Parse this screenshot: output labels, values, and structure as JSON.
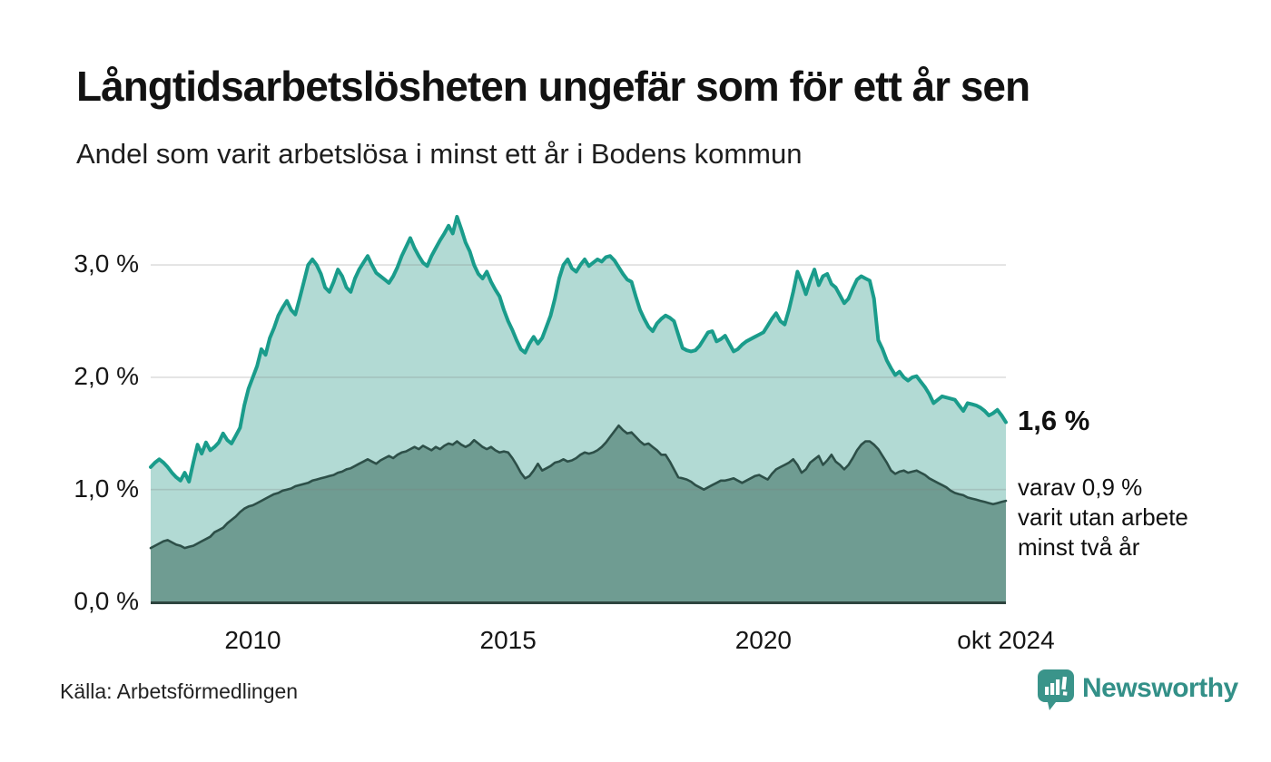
{
  "header": {
    "title": "Långtidsarbetslösheten ungefär som för ett år sen",
    "subtitle": "Andel som varit arbetslösa i minst ett år i Bodens kommun"
  },
  "chart_data": {
    "type": "area",
    "mode": "overlay",
    "title": "Långtidsarbetslösheten ungefär som för ett år sen",
    "subtitle": "Andel som varit arbetslösa i minst ett år i Bodens kommun",
    "frequency": "monthly",
    "x_domain": [
      2008.0,
      2024.75
    ],
    "ylim": [
      0,
      3.5
    ],
    "grid": true,
    "y_ticks": [
      {
        "value": 0,
        "label": "0,0 %"
      },
      {
        "value": 1,
        "label": "1,0 %"
      },
      {
        "value": 2,
        "label": "2,0 %"
      },
      {
        "value": 3,
        "label": "3,0 %"
      }
    ],
    "x_ticks": [
      {
        "value": 2010.0,
        "label": "2010"
      },
      {
        "value": 2015.0,
        "label": "2015"
      },
      {
        "value": 2020.0,
        "label": "2020"
      },
      {
        "value": 2024.75,
        "label": "okt 2024"
      }
    ],
    "series": [
      {
        "name": "Andel som varit arbetslösa i minst ett år",
        "line_color": "#1a9c8b",
        "fill_color": "#b2dad4",
        "line_width": 4,
        "end_value": 1.6,
        "end_label": "1,6 %",
        "values": [
          1.2,
          1.24,
          1.27,
          1.24,
          1.2,
          1.15,
          1.11,
          1.08,
          1.15,
          1.07,
          1.24,
          1.4,
          1.32,
          1.42,
          1.35,
          1.38,
          1.42,
          1.5,
          1.44,
          1.41,
          1.48,
          1.55,
          1.75,
          1.9,
          2.0,
          2.1,
          2.25,
          2.2,
          2.35,
          2.44,
          2.55,
          2.62,
          2.68,
          2.6,
          2.56,
          2.7,
          2.85,
          3.0,
          3.05,
          3.0,
          2.92,
          2.8,
          2.76,
          2.85,
          2.96,
          2.9,
          2.8,
          2.76,
          2.88,
          2.96,
          3.02,
          3.08,
          3.0,
          2.93,
          2.9,
          2.87,
          2.84,
          2.9,
          2.98,
          3.08,
          3.16,
          3.24,
          3.15,
          3.08,
          3.02,
          2.99,
          3.08,
          3.15,
          3.22,
          3.28,
          3.35,
          3.28,
          3.43,
          3.32,
          3.2,
          3.12,
          3.0,
          2.92,
          2.88,
          2.94,
          2.85,
          2.78,
          2.72,
          2.6,
          2.5,
          2.42,
          2.33,
          2.25,
          2.22,
          2.3,
          2.36,
          2.3,
          2.35,
          2.45,
          2.55,
          2.7,
          2.88,
          3.0,
          3.05,
          2.97,
          2.94,
          3.0,
          3.05,
          2.99,
          3.02,
          3.05,
          3.03,
          3.07,
          3.08,
          3.04,
          2.98,
          2.92,
          2.87,
          2.85,
          2.72,
          2.6,
          2.52,
          2.45,
          2.41,
          2.48,
          2.52,
          2.55,
          2.53,
          2.5,
          2.38,
          2.26,
          2.24,
          2.23,
          2.24,
          2.28,
          2.34,
          2.4,
          2.41,
          2.32,
          2.34,
          2.37,
          2.3,
          2.23,
          2.25,
          2.29,
          2.32,
          2.34,
          2.36,
          2.38,
          2.4,
          2.46,
          2.52,
          2.57,
          2.5,
          2.47,
          2.6,
          2.76,
          2.94,
          2.85,
          2.74,
          2.86,
          2.96,
          2.82,
          2.9,
          2.92,
          2.83,
          2.8,
          2.73,
          2.66,
          2.7,
          2.79,
          2.87,
          2.9,
          2.88,
          2.86,
          2.7,
          2.33,
          2.25,
          2.15,
          2.08,
          2.02,
          2.05,
          2.0,
          1.97,
          2.0,
          2.01,
          1.96,
          1.91,
          1.85,
          1.77,
          1.8,
          1.83,
          1.82,
          1.81,
          1.8,
          1.75,
          1.7,
          1.77,
          1.76,
          1.75,
          1.73,
          1.7,
          1.66,
          1.68,
          1.71,
          1.66,
          1.6
        ]
      },
      {
        "name": "varav utan arbete minst två år",
        "line_color": "#2d4f48",
        "fill_color": "#6f9c92",
        "line_width": 2.6,
        "end_value": 0.9,
        "end_label": "varav 0,9 % varit utan arbete minst två år",
        "values": [
          0.48,
          0.5,
          0.52,
          0.54,
          0.55,
          0.53,
          0.51,
          0.5,
          0.48,
          0.49,
          0.5,
          0.52,
          0.54,
          0.56,
          0.58,
          0.62,
          0.64,
          0.66,
          0.7,
          0.73,
          0.76,
          0.8,
          0.83,
          0.85,
          0.86,
          0.88,
          0.9,
          0.92,
          0.94,
          0.96,
          0.97,
          0.99,
          1.0,
          1.01,
          1.03,
          1.04,
          1.05,
          1.06,
          1.08,
          1.09,
          1.1,
          1.11,
          1.12,
          1.13,
          1.15,
          1.16,
          1.18,
          1.19,
          1.21,
          1.23,
          1.25,
          1.27,
          1.25,
          1.23,
          1.26,
          1.28,
          1.3,
          1.28,
          1.31,
          1.33,
          1.34,
          1.36,
          1.38,
          1.36,
          1.39,
          1.37,
          1.35,
          1.38,
          1.36,
          1.39,
          1.41,
          1.4,
          1.43,
          1.4,
          1.38,
          1.4,
          1.44,
          1.41,
          1.38,
          1.36,
          1.38,
          1.35,
          1.33,
          1.34,
          1.33,
          1.28,
          1.22,
          1.15,
          1.1,
          1.12,
          1.17,
          1.23,
          1.17,
          1.19,
          1.21,
          1.24,
          1.25,
          1.27,
          1.25,
          1.26,
          1.28,
          1.31,
          1.33,
          1.32,
          1.33,
          1.35,
          1.38,
          1.42,
          1.47,
          1.52,
          1.57,
          1.53,
          1.5,
          1.51,
          1.47,
          1.43,
          1.4,
          1.41,
          1.38,
          1.35,
          1.31,
          1.31,
          1.25,
          1.18,
          1.11,
          1.1,
          1.09,
          1.07,
          1.04,
          1.02,
          1.0,
          1.02,
          1.04,
          1.06,
          1.08,
          1.08,
          1.09,
          1.1,
          1.08,
          1.06,
          1.08,
          1.1,
          1.12,
          1.13,
          1.11,
          1.09,
          1.14,
          1.18,
          1.2,
          1.22,
          1.24,
          1.27,
          1.22,
          1.15,
          1.18,
          1.24,
          1.27,
          1.3,
          1.22,
          1.26,
          1.31,
          1.25,
          1.22,
          1.18,
          1.22,
          1.28,
          1.35,
          1.4,
          1.43,
          1.43,
          1.4,
          1.36,
          1.3,
          1.24,
          1.17,
          1.14,
          1.16,
          1.17,
          1.15,
          1.16,
          1.17,
          1.15,
          1.13,
          1.1,
          1.08,
          1.06,
          1.04,
          1.02,
          0.99,
          0.97,
          0.96,
          0.95,
          0.93,
          0.92,
          0.91,
          0.9,
          0.89,
          0.88,
          0.87,
          0.88,
          0.89,
          0.9
        ]
      }
    ]
  },
  "annotations": {
    "latest_label": "1,6 %",
    "secondary_lines": [
      "varav 0,9 %",
      "varit utan arbete",
      "minst två år"
    ]
  },
  "footer": {
    "source": "Källa: Arbetsförmedlingen",
    "brand": "Newsworthy"
  },
  "colors": {
    "line_primary": "#1a9c8b",
    "fill_primary": "#b2dad4",
    "line_secondary": "#2d4f48",
    "fill_secondary": "#6f9c92",
    "grid": "#e0e0e0",
    "axis": "#2e453f",
    "brand_teal": "#339088"
  }
}
